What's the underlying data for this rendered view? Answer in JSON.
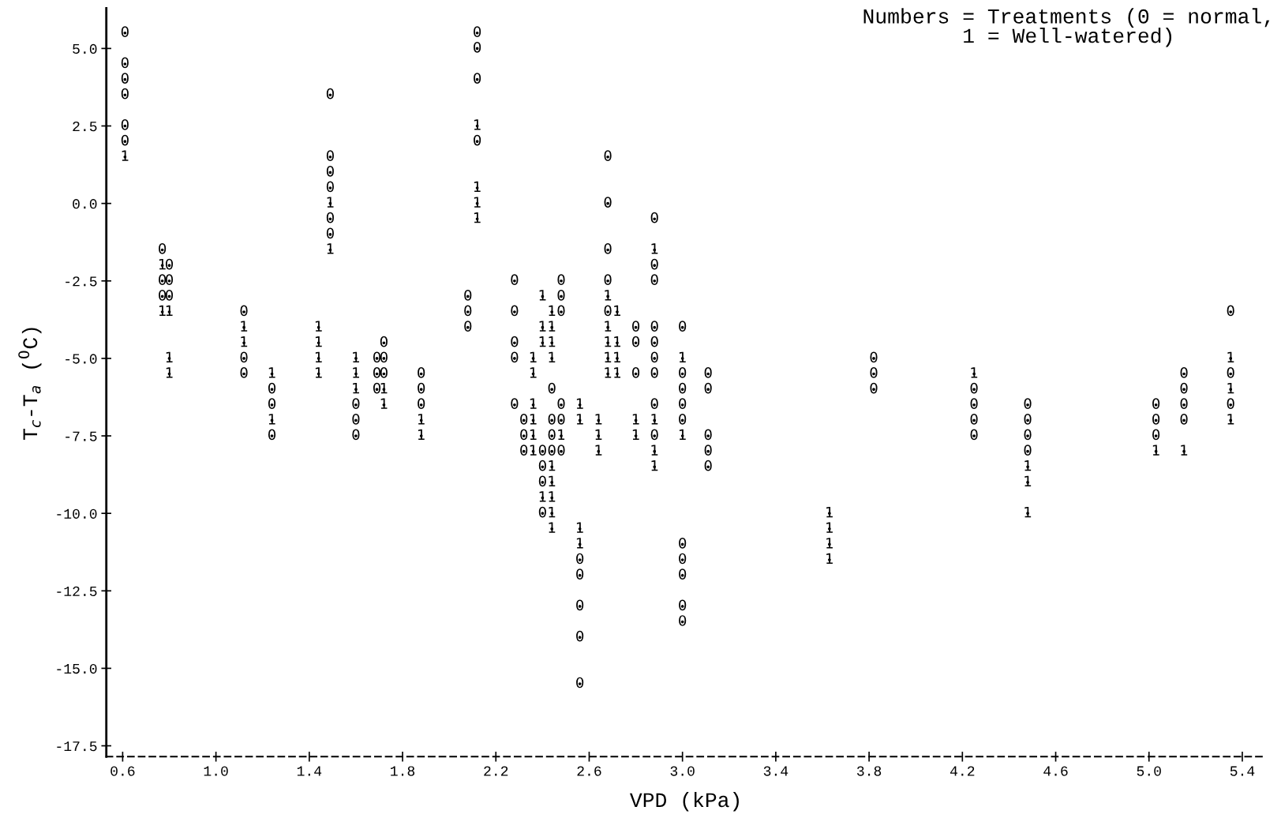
{
  "chart_data": {
    "type": "scatter",
    "xlabel": "VPD (kPa)",
    "ylabel": "T$_{c}$-T$_{a}$ ($^{0}$C)",
    "annotations": [
      "Numbers = Treatments (0 = normal,\n1 = Well-watered)"
    ],
    "xlim": [
      0.53,
      5.5
    ],
    "ylim": [
      -17.85,
      6.3
    ],
    "xticks": [
      0.6,
      {
        "value": 1,
        "label": "1.0"
      },
      1.4,
      1.8,
      2.2,
      2.6,
      {
        "value": 3,
        "label": "3.0"
      },
      3.4,
      3.8,
      4.2,
      4.6,
      {
        "value": 5,
        "label": "5.0"
      },
      5.4
    ],
    "yticks": [
      {
        "value": 5,
        "label": "5.0"
      },
      2.5,
      {
        "value": 0,
        "label": "0.0"
      },
      -2.5,
      {
        "value": -5,
        "label": "-5.0"
      },
      -7.5,
      {
        "value": -10,
        "label": "-10.0"
      },
      -12.5,
      {
        "value": -15,
        "label": "-15.0"
      },
      -17.5
    ],
    "grid": false,
    "legend": false,
    "series": [
      {
        "name": "0",
        "color": "#000000",
        "x": [
          0.61,
          0.61,
          0.61,
          0.61,
          0.61,
          0.61,
          0.77,
          0.77,
          0.77,
          0.8,
          0.8,
          0.8,
          1.12,
          1.12,
          1.12,
          1.24,
          1.24,
          1.24,
          1.49,
          1.49,
          1.49,
          1.49,
          1.49,
          1.49,
          1.6,
          1.6,
          1.6,
          1.69,
          1.69,
          1.69,
          1.72,
          1.72,
          1.72,
          1.88,
          1.88,
          1.88,
          2.08,
          2.08,
          2.08,
          2.12,
          2.12,
          2.12,
          2.12,
          2.28,
          2.28,
          2.28,
          2.28,
          2.28,
          2.32,
          2.32,
          2.32,
          2.4,
          2.4,
          2.4,
          2.4,
          2.44,
          2.44,
          2.44,
          2.44,
          2.48,
          2.48,
          2.48,
          2.48,
          2.48,
          2.48,
          2.56,
          2.56,
          2.56,
          2.56,
          2.56,
          2.68,
          2.68,
          2.68,
          2.68,
          2.68,
          2.8,
          2.8,
          2.8,
          2.88,
          2.88,
          2.88,
          2.88,
          2.88,
          2.88,
          2.88,
          2.88,
          2.88,
          3.0,
          3.0,
          3.0,
          3.0,
          3.0,
          3.0,
          3.0,
          3.0,
          3.0,
          3.0,
          3.11,
          3.11,
          3.11,
          3.11,
          3.11,
          3.82,
          3.82,
          3.82,
          4.25,
          4.25,
          4.25,
          4.25,
          4.48,
          4.48,
          4.48,
          4.48,
          5.03,
          5.03,
          5.03,
          5.15,
          5.15,
          5.15,
          5.15,
          5.35,
          5.35,
          5.35
        ],
        "values": [
          5.5,
          4.5,
          4,
          3.5,
          2.5,
          2,
          -1.5,
          -2.5,
          -3,
          -2,
          -2.5,
          -3,
          -3.5,
          -5,
          -5.5,
          -6,
          -6.5,
          -7.5,
          3.5,
          1.5,
          1,
          0.5,
          -0.5,
          -1,
          -6.5,
          -7,
          -7.5,
          -5,
          -5.5,
          -6,
          -4.5,
          -5,
          -5.5,
          -5.5,
          -6,
          -6.5,
          -3,
          -3.5,
          -4,
          5.5,
          5,
          4,
          2,
          -2.5,
          -3.5,
          -4.5,
          -5,
          -6.5,
          -7,
          -7.5,
          -8,
          -8,
          -8.5,
          -9,
          -10,
          -6,
          -7,
          -7.5,
          -8,
          -2.5,
          -3,
          -3.5,
          -6.5,
          -7,
          -8,
          -11.5,
          -12,
          -13,
          -14,
          -15.5,
          1.5,
          0,
          -1.5,
          -2.5,
          -3.5,
          -4,
          -4.5,
          -5.5,
          -0.5,
          -2,
          -2.5,
          -4,
          -4.5,
          -5,
          -5.5,
          -6.5,
          -7.5,
          -4,
          -5.5,
          -6,
          -6.5,
          -7,
          -11,
          -11.5,
          -12,
          -13,
          -13.5,
          -5.5,
          -6,
          -7.5,
          -8,
          -8.5,
          -5,
          -5.5,
          -6,
          -6,
          -6.5,
          -7,
          -7.5,
          -6.5,
          -7,
          -7.5,
          -8,
          -6.5,
          -7,
          -7.5,
          -5.5,
          -6,
          -6.5,
          -7,
          -3.5,
          -5.5,
          -6.5
        ]
      },
      {
        "name": "1",
        "color": "#000000",
        "x": [
          0.61,
          0.77,
          0.77,
          0.8,
          0.8,
          0.8,
          1.12,
          1.12,
          1.24,
          1.24,
          1.44,
          1.44,
          1.44,
          1.44,
          1.49,
          1.49,
          1.6,
          1.6,
          1.6,
          1.72,
          1.72,
          1.88,
          1.88,
          2.12,
          2.12,
          2.12,
          2.12,
          2.36,
          2.36,
          2.36,
          2.36,
          2.36,
          2.36,
          2.4,
          2.4,
          2.4,
          2.4,
          2.44,
          2.44,
          2.44,
          2.44,
          2.44,
          2.44,
          2.44,
          2.44,
          2.44,
          2.48,
          2.56,
          2.56,
          2.56,
          2.56,
          2.64,
          2.64,
          2.64,
          2.68,
          2.68,
          2.68,
          2.68,
          2.68,
          2.72,
          2.72,
          2.72,
          2.72,
          2.8,
          2.8,
          2.88,
          2.88,
          2.88,
          2.88,
          3.0,
          3.0,
          3.63,
          3.63,
          3.63,
          3.63,
          4.25,
          4.48,
          4.48,
          4.48,
          5.03,
          5.15,
          5.35,
          5.35,
          5.35
        ],
        "values": [
          1.5,
          -2,
          -3.5,
          -3.5,
          -5,
          -5.5,
          -4,
          -4.5,
          -5.5,
          -7,
          -4,
          -4.5,
          -5,
          -5.5,
          0,
          -1.5,
          -5,
          -5.5,
          -6,
          -6,
          -6.5,
          -7,
          -7.5,
          2.5,
          0.5,
          0,
          -0.5,
          -5,
          -5.5,
          -6.5,
          -7,
          -7.5,
          -8,
          -3,
          -4,
          -4.5,
          -9.5,
          -3.5,
          -4,
          -4.5,
          -5,
          -8.5,
          -9,
          -9.5,
          -10,
          -10.5,
          -7.5,
          -6.5,
          -7,
          -10.5,
          -11,
          -7,
          -7.5,
          -8,
          -3,
          -4,
          -4.5,
          -5,
          -5.5,
          -3.5,
          -4.5,
          -5,
          -5.5,
          -7,
          -7.5,
          -1.5,
          -7,
          -8,
          -8.5,
          -5,
          -7.5,
          -10,
          -10.5,
          -11,
          -11.5,
          -5.5,
          -8.5,
          -9,
          -10,
          -8,
          -8,
          -5,
          -6,
          -7
        ]
      }
    ]
  }
}
